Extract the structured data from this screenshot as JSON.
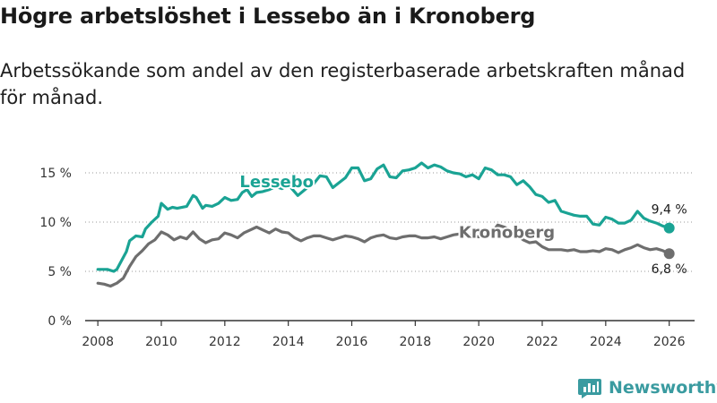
{
  "title": "Högre arbetslöshet i Lessebo än i Kronoberg",
  "subtitle": "Arbetssökande som andel av den registerbaserade arbetskraften månad för månad.",
  "brand": {
    "name": "Newsworthy",
    "icon": "bar-chart-logo-icon",
    "color": "#3a9ba0"
  },
  "chart_data": {
    "type": "line",
    "title": "Högre arbetslöshet i Lessebo än i Kronoberg",
    "xlabel": "",
    "ylabel": "",
    "xlim": [
      2007.6,
      2026.8
    ],
    "ylim": [
      0,
      15
    ],
    "y_ticks": [
      0,
      5,
      10,
      15
    ],
    "y_tick_labels": [
      "0 %",
      "5 %",
      "10 %",
      "15 %"
    ],
    "x_ticks": [
      2008,
      2010,
      2012,
      2014,
      2016,
      2018,
      2020,
      2022,
      2024,
      2026
    ],
    "x_tick_labels": [
      "2008",
      "2010",
      "2012",
      "2014",
      "2016",
      "2018",
      "2020",
      "2022",
      "2024",
      "2026"
    ],
    "grid": "horizontal-dotted",
    "series": [
      {
        "name": "Lessebo",
        "color": "#1aa394",
        "end_label": "9,4 %",
        "x": [
          2008.0,
          2008.3,
          2008.5,
          2008.6,
          2008.75,
          2008.9,
          2009.0,
          2009.2,
          2009.4,
          2009.5,
          2009.7,
          2009.9,
          2010.0,
          2010.2,
          2010.35,
          2010.5,
          2010.8,
          2011.0,
          2011.1,
          2011.3,
          2011.4,
          2011.6,
          2011.8,
          2012.0,
          2012.2,
          2012.4,
          2012.55,
          2012.7,
          2012.85,
          2013.0,
          2013.2,
          2013.4,
          2013.6,
          2013.8,
          2014.0,
          2014.3,
          2014.6,
          2014.8,
          2015.0,
          2015.2,
          2015.4,
          2015.6,
          2015.8,
          2016.0,
          2016.2,
          2016.4,
          2016.6,
          2016.8,
          2017.0,
          2017.2,
          2017.4,
          2017.6,
          2017.8,
          2018.0,
          2018.2,
          2018.4,
          2018.6,
          2018.8,
          2019.0,
          2019.2,
          2019.4,
          2019.6,
          2019.8,
          2020.0,
          2020.2,
          2020.4,
          2020.6,
          2020.8,
          2021.0,
          2021.2,
          2021.4,
          2021.6,
          2021.8,
          2022.0,
          2022.2,
          2022.4,
          2022.6,
          2022.8,
          2023.0,
          2023.2,
          2023.4,
          2023.6,
          2023.8,
          2024.0,
          2024.2,
          2024.4,
          2024.6,
          2024.8,
          2025.0,
          2025.2,
          2025.4,
          2025.6,
          2025.8,
          2026.0
        ],
        "values": [
          5.2,
          5.2,
          5.0,
          5.2,
          6.1,
          7.0,
          8.1,
          8.6,
          8.5,
          9.3,
          10.0,
          10.6,
          11.9,
          11.3,
          11.5,
          11.4,
          11.6,
          12.7,
          12.5,
          11.4,
          11.7,
          11.6,
          11.9,
          12.5,
          12.2,
          12.3,
          13.0,
          13.3,
          12.6,
          13.0,
          13.1,
          13.3,
          13.6,
          13.4,
          13.8,
          12.7,
          13.5,
          13.9,
          14.7,
          14.6,
          13.5,
          14.0,
          14.5,
          15.5,
          15.5,
          14.2,
          14.4,
          15.4,
          15.8,
          14.6,
          14.5,
          15.2,
          15.3,
          15.5,
          16.0,
          15.5,
          15.8,
          15.6,
          15.2,
          15.0,
          14.9,
          14.6,
          14.8,
          14.4,
          15.5,
          15.3,
          14.8,
          14.8,
          14.6,
          13.8,
          14.2,
          13.6,
          12.8,
          12.6,
          12.0,
          12.2,
          11.1,
          10.9,
          10.7,
          10.6,
          10.6,
          9.8,
          9.7,
          10.5,
          10.3,
          9.9,
          9.9,
          10.2,
          11.1,
          10.4,
          10.1,
          9.9,
          9.6,
          9.4
        ]
      },
      {
        "name": "Kronoberg",
        "color": "#6e6e6e",
        "end_label": "6,8 %",
        "x": [
          2008.0,
          2008.2,
          2008.4,
          2008.6,
          2008.8,
          2009.0,
          2009.2,
          2009.4,
          2009.6,
          2009.8,
          2010.0,
          2010.2,
          2010.4,
          2010.6,
          2010.8,
          2011.0,
          2011.2,
          2011.4,
          2011.6,
          2011.8,
          2012.0,
          2012.2,
          2012.4,
          2012.6,
          2012.8,
          2013.0,
          2013.2,
          2013.4,
          2013.6,
          2013.8,
          2014.0,
          2014.2,
          2014.4,
          2014.6,
          2014.8,
          2015.0,
          2015.2,
          2015.4,
          2015.6,
          2015.8,
          2016.0,
          2016.2,
          2016.4,
          2016.6,
          2016.8,
          2017.0,
          2017.2,
          2017.4,
          2017.6,
          2017.8,
          2018.0,
          2018.2,
          2018.4,
          2018.6,
          2018.8,
          2019.0,
          2019.2,
          2019.4,
          2019.6,
          2019.8,
          2020.0,
          2020.2,
          2020.4,
          2020.6,
          2020.8,
          2021.0,
          2021.2,
          2021.4,
          2021.6,
          2021.8,
          2022.0,
          2022.2,
          2022.4,
          2022.6,
          2022.8,
          2023.0,
          2023.2,
          2023.4,
          2023.6,
          2023.8,
          2024.0,
          2024.2,
          2024.4,
          2024.6,
          2024.8,
          2025.0,
          2025.2,
          2025.4,
          2025.6,
          2025.8,
          2026.0
        ],
        "values": [
          3.8,
          3.7,
          3.5,
          3.8,
          4.3,
          5.5,
          6.5,
          7.1,
          7.8,
          8.2,
          9.0,
          8.7,
          8.2,
          8.5,
          8.3,
          9.0,
          8.3,
          7.9,
          8.2,
          8.3,
          8.9,
          8.7,
          8.4,
          8.9,
          9.2,
          9.5,
          9.2,
          8.9,
          9.3,
          9.0,
          8.9,
          8.4,
          8.1,
          8.4,
          8.6,
          8.6,
          8.4,
          8.2,
          8.4,
          8.6,
          8.5,
          8.3,
          8.0,
          8.4,
          8.6,
          8.7,
          8.4,
          8.3,
          8.5,
          8.6,
          8.6,
          8.4,
          8.4,
          8.5,
          8.3,
          8.5,
          8.7,
          8.8,
          8.8,
          8.6,
          8.5,
          8.7,
          8.9,
          9.7,
          9.5,
          9.2,
          8.7,
          8.2,
          7.9,
          8.0,
          7.5,
          7.2,
          7.2,
          7.2,
          7.1,
          7.2,
          7.0,
          7.0,
          7.1,
          7.0,
          7.3,
          7.2,
          6.9,
          7.2,
          7.4,
          7.7,
          7.4,
          7.2,
          7.3,
          7.1,
          6.8
        ]
      }
    ]
  }
}
